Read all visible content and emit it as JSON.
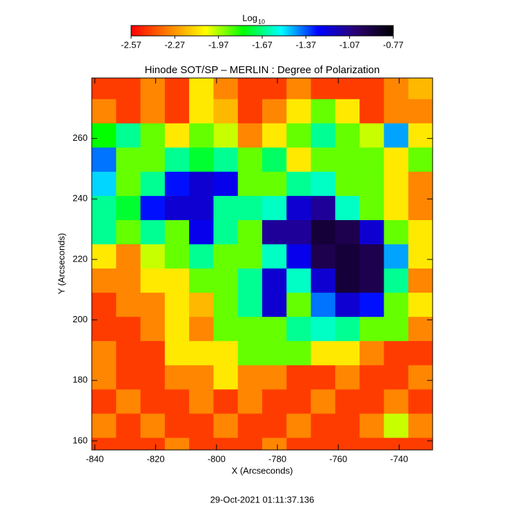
{
  "chart_data": {
    "type": "heatmap",
    "title": "Hinode SOT/SP – MERLIN : Degree of Polarization",
    "xlabel": "X (Arcseconds)",
    "ylabel": "Y (Arcseconds)",
    "timestamp": "29-Oct-2021 01:11:37.136",
    "xlim": [
      -841,
      -729
    ],
    "ylim": [
      157,
      280
    ],
    "xticks": [
      -840,
      -820,
      -800,
      -780,
      -760,
      -740
    ],
    "yticks": [
      160,
      180,
      200,
      220,
      240,
      260
    ],
    "x": [
      -837,
      -829,
      -821,
      -813,
      -805,
      -797,
      -789,
      -781,
      -773,
      -765,
      -757,
      -749,
      -741,
      -733
    ],
    "y": [
      277,
      269,
      261,
      253,
      245,
      237,
      229,
      221,
      213,
      205,
      197,
      189,
      181,
      173,
      165,
      157
    ],
    "values": [
      [
        -2.45,
        -2.45,
        -2.3,
        -2.45,
        -2.1,
        -2.3,
        -2.45,
        -2.45,
        -2.3,
        -2.45,
        -2.45,
        -2.45,
        -2.3,
        -2.2
      ],
      [
        -2.3,
        -2.45,
        -2.3,
        -2.45,
        -2.1,
        -2.2,
        -2.45,
        -2.3,
        -2.1,
        -1.9,
        -2.1,
        -2.45,
        -2.3,
        -2.3
      ],
      [
        -1.8,
        -1.65,
        -1.9,
        -2.1,
        -1.9,
        -2.0,
        -2.3,
        -2.1,
        -1.9,
        -1.65,
        -1.9,
        -2.0,
        -1.45,
        -2.1
      ],
      [
        -1.4,
        -1.9,
        -1.9,
        -1.65,
        -1.75,
        -1.65,
        -1.9,
        -1.7,
        -2.1,
        -1.9,
        -1.9,
        -1.9,
        -2.1,
        -1.9
      ],
      [
        -1.5,
        -1.9,
        -1.65,
        -1.3,
        -1.2,
        -1.25,
        -1.9,
        -1.9,
        -1.65,
        -1.6,
        -1.9,
        -1.9,
        -2.1,
        -2.3
      ],
      [
        -1.65,
        -1.75,
        -1.3,
        -1.2,
        -1.2,
        -1.65,
        -1.65,
        -1.6,
        -1.2,
        -1.1,
        -1.6,
        -1.9,
        -2.1,
        -2.3
      ],
      [
        -1.65,
        -1.9,
        -1.65,
        -1.9,
        -1.25,
        -1.65,
        -1.9,
        -1.1,
        -1.1,
        -0.9,
        -0.95,
        -1.2,
        -1.9,
        -2.1
      ],
      [
        -2.1,
        -2.3,
        -2.0,
        -1.9,
        -1.65,
        -1.9,
        -1.9,
        -1.6,
        -1.25,
        -0.95,
        -0.9,
        -0.95,
        -1.45,
        -2.1
      ],
      [
        -2.3,
        -2.3,
        -2.1,
        -2.1,
        -1.9,
        -1.9,
        -1.65,
        -1.2,
        -1.6,
        -1.2,
        -0.9,
        -0.95,
        -1.65,
        -2.3
      ],
      [
        -2.45,
        -2.3,
        -2.3,
        -2.1,
        -2.2,
        -1.9,
        -1.65,
        -1.2,
        -1.9,
        -1.4,
        -1.2,
        -1.3,
        -1.9,
        -2.1
      ],
      [
        -2.45,
        -2.45,
        -2.3,
        -2.1,
        -2.3,
        -1.9,
        -1.9,
        -1.9,
        -1.65,
        -1.6,
        -1.65,
        -1.9,
        -1.9,
        -2.3
      ],
      [
        -2.3,
        -2.45,
        -2.45,
        -2.1,
        -2.1,
        -2.1,
        -1.9,
        -1.9,
        -1.9,
        -2.1,
        -2.1,
        -2.3,
        -2.45,
        -2.45
      ],
      [
        -2.3,
        -2.45,
        -2.45,
        -2.3,
        -2.3,
        -2.1,
        -2.3,
        -2.3,
        -2.45,
        -2.45,
        -2.3,
        -2.45,
        -2.45,
        -2.3
      ],
      [
        -2.45,
        -2.3,
        -2.45,
        -2.45,
        -2.3,
        -2.45,
        -2.3,
        -2.45,
        -2.45,
        -2.3,
        -2.45,
        -2.45,
        -2.3,
        -2.45
      ],
      [
        -2.3,
        -2.45,
        -2.3,
        -2.45,
        -2.45,
        -2.3,
        -2.45,
        -2.45,
        -2.3,
        -2.45,
        -2.45,
        -2.3,
        -2.0,
        -2.3
      ],
      [
        -2.45,
        -2.45,
        -2.45,
        -2.3,
        -2.45,
        -2.45,
        -2.45,
        -2.3,
        -2.45,
        -2.45,
        -2.45,
        -2.45,
        -2.45,
        -2.45
      ]
    ],
    "colorbar": {
      "label": "Log",
      "label_sub": "10",
      "lim": [
        -2.57,
        -0.77
      ],
      "ticks": [
        -2.57,
        -2.27,
        -1.97,
        -1.67,
        -1.37,
        -1.07,
        -0.77
      ],
      "colormap": [
        "#ff0000",
        "#ff8000",
        "#ffff00",
        "#00ff00",
        "#00ffff",
        "#0000ff",
        "#2a0070",
        "#000000"
      ]
    }
  }
}
